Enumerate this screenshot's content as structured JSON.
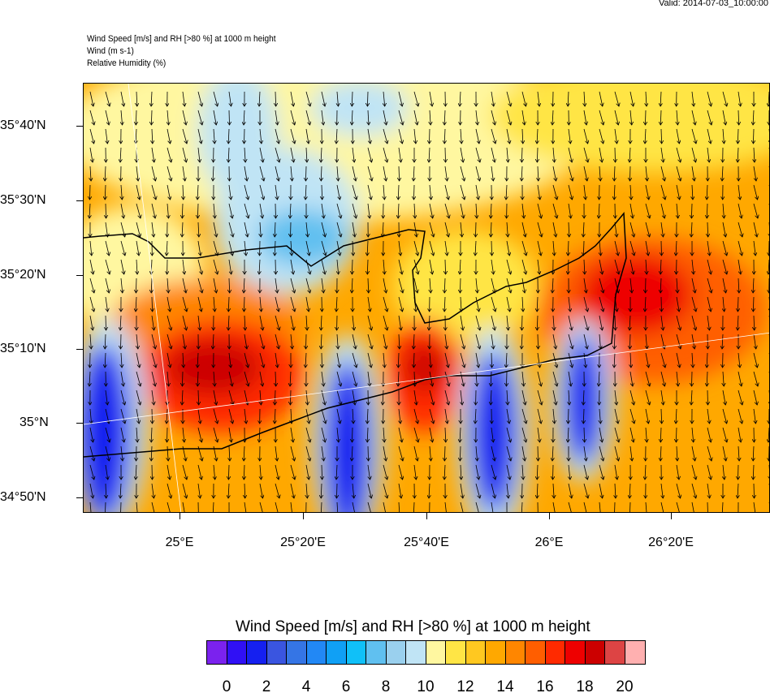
{
  "header": {
    "valid": "Valid: 2014-07-03_10:00:00",
    "titles": [
      "Wind Speed [m/s] and RH [>80 %] at 1000 m height",
      "Wind   (m s-1)",
      "Relative Humidity   (%)"
    ]
  },
  "map": {
    "lat_labels": [
      "35°40'N",
      "35°30'N",
      "35°20'N",
      "35°10'N",
      "35°N",
      "34°50'N"
    ],
    "lon_labels": [
      "25°E",
      "25°20'E",
      "25°40'E",
      "26°E",
      "26°20'E"
    ]
  },
  "colorbar": {
    "title": "Wind Speed [m/s] and RH [>80 %] at 1000 m height",
    "colors": [
      "#7B22EE",
      "#3010F5",
      "#1520F0",
      "#3A55E0",
      "#3575E5",
      "#2288F5",
      "#10A0F5",
      "#10C0F8",
      "#60C0F0",
      "#9AD0EE",
      "#C0E4F5",
      "#FFF7A0",
      "#FFE545",
      "#FFC820",
      "#FFA800",
      "#FF8600",
      "#FF5E00",
      "#FF2A00",
      "#EE0000",
      "#CC0000",
      "#DD4444",
      "#FFB0B0"
    ],
    "labels": [
      "0",
      "2",
      "4",
      "6",
      "8",
      "10",
      "12",
      "14",
      "16",
      "18",
      "20"
    ]
  }
}
